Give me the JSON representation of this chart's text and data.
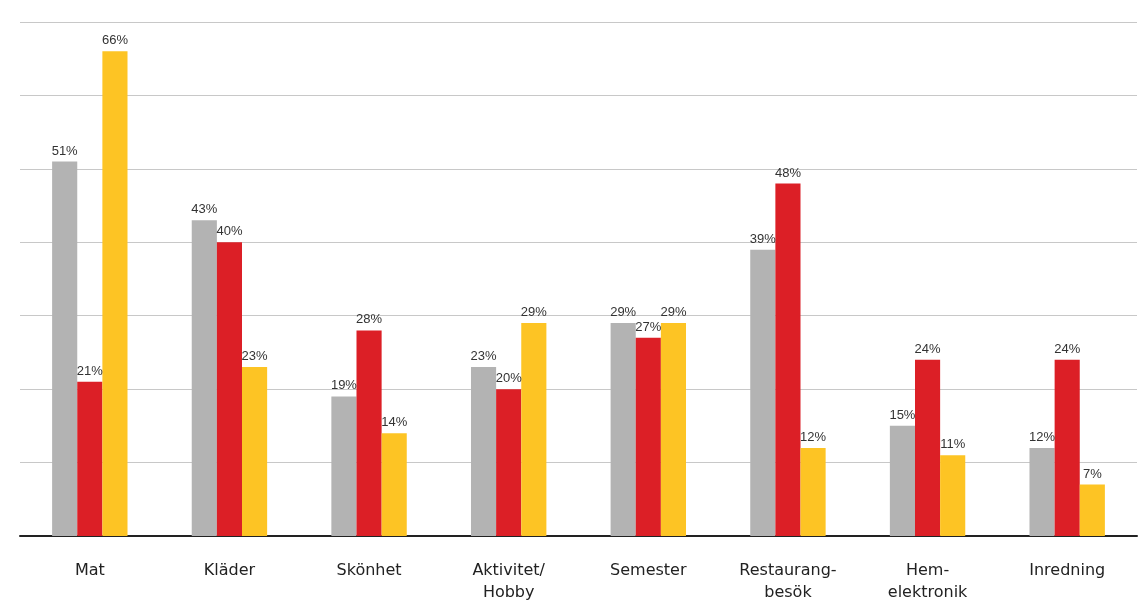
{
  "chart_data": {
    "type": "bar",
    "categories": [
      "Mat",
      "Kläder",
      "Skönhet",
      "Aktivitet/\nHobby",
      "Semester",
      "Restaurang-\nbesök",
      "Hem-\nelektronik",
      "Inredning"
    ],
    "series": [
      {
        "color": "#b3b3b3",
        "values": [
          51,
          43,
          19,
          23,
          29,
          39,
          15,
          12
        ],
        "value_labels": [
          "51%",
          "43%",
          "19%",
          "23%",
          "29%",
          "39%",
          "15%",
          "12%"
        ]
      },
      {
        "color": "#dc1f26",
        "values": [
          21,
          40,
          28,
          20,
          27,
          48,
          24,
          24
        ],
        "value_labels": [
          "21%",
          "40%",
          "28%",
          "20%",
          "27%",
          "48%",
          "24%",
          "24%"
        ]
      },
      {
        "color": "#fdc424",
        "values": [
          66,
          23,
          14,
          29,
          29,
          12,
          11,
          7
        ],
        "value_labels": [
          "66%",
          "23%",
          "14%",
          "29%",
          "29%",
          "12%",
          "11%",
          "7%"
        ]
      }
    ],
    "ylim": [
      0,
      70
    ],
    "yticks": [
      {
        "value": 0,
        "label": null
      },
      {
        "value": 10,
        "label": null
      },
      {
        "value": 20,
        "label": null
      },
      {
        "value": 30,
        "label": null
      },
      {
        "value": 40,
        "label": null
      },
      {
        "value": 50,
        "label": null
      },
      {
        "value": 60,
        "label": null
      },
      {
        "value": 70,
        "label": null
      }
    ],
    "grid": "y",
    "tick_labels": "x"
  }
}
